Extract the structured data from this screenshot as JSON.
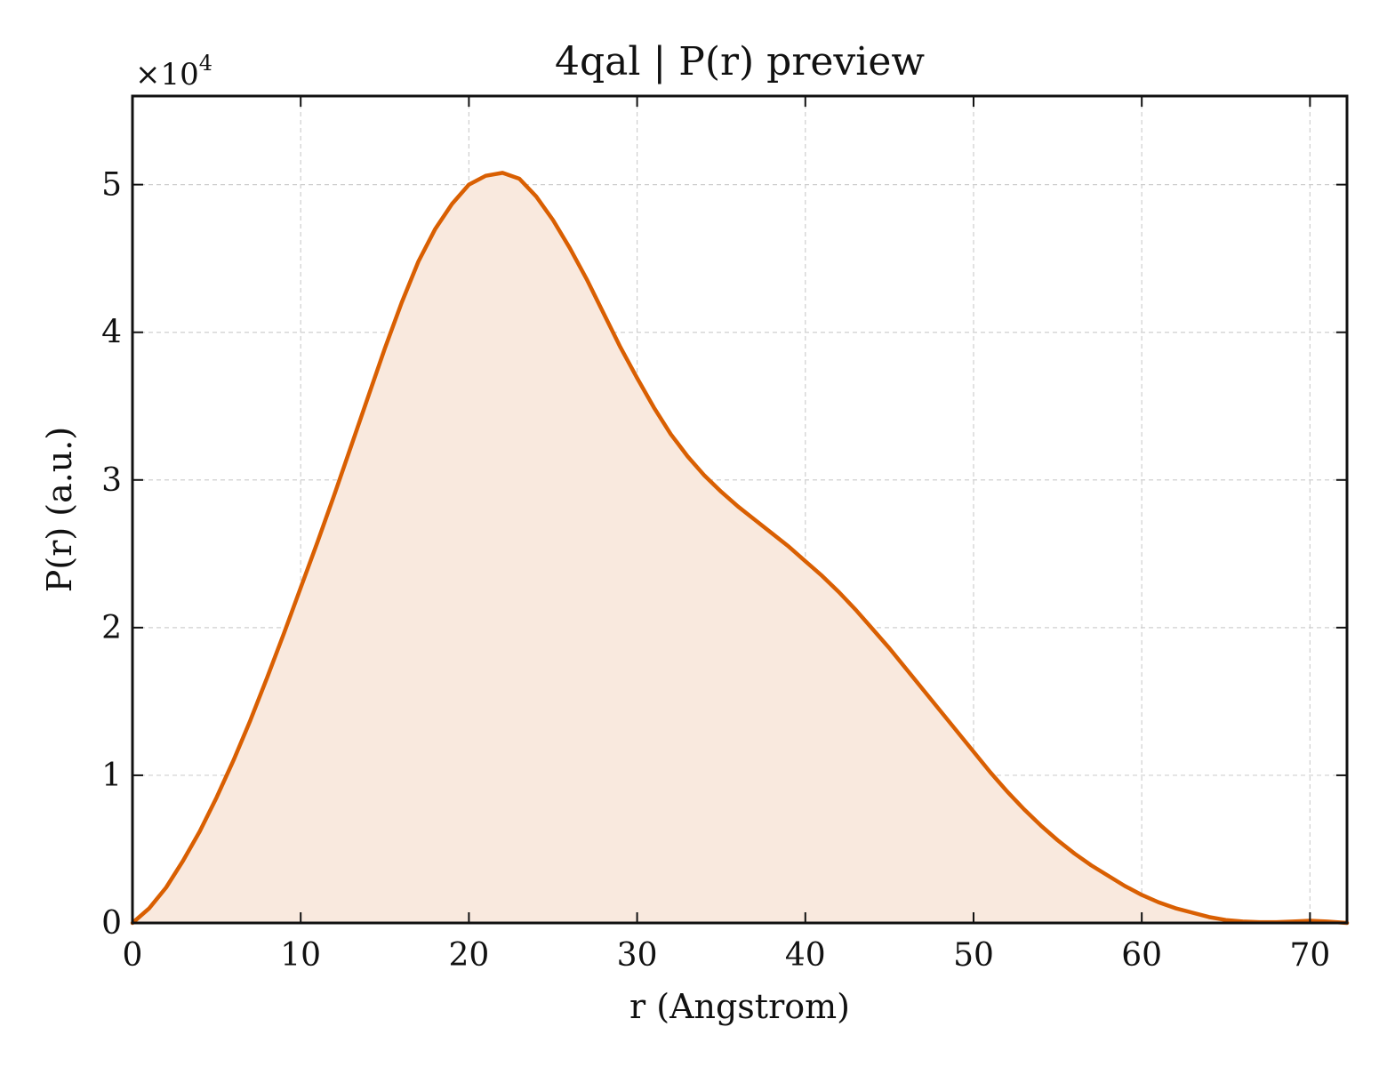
{
  "chart_data": {
    "type": "area",
    "title": "4qal | P(r) preview",
    "xlabel": "r (Angstrom)",
    "ylabel": "P(r) (a.u.)",
    "y_multiplier": {
      "base": "×10",
      "exponent": "4"
    },
    "xlim": [
      0,
      72.2
    ],
    "ylim": [
      0,
      56000
    ],
    "xticks": [
      0,
      10,
      20,
      30,
      40,
      50,
      60,
      70
    ],
    "yticks": [
      0,
      10000,
      20000,
      30000,
      40000,
      50000
    ],
    "ytick_labels": [
      "0",
      "1",
      "2",
      "3",
      "4",
      "5"
    ],
    "grid": true,
    "colors": {
      "line": "#d95f02",
      "fill": "#f9e9de"
    },
    "series": [
      {
        "x": [
          0,
          1,
          2,
          3,
          4,
          5,
          6,
          7,
          8,
          9,
          10,
          11,
          12,
          13,
          14,
          15,
          16,
          17,
          18,
          19,
          20,
          21,
          22,
          23,
          24,
          25,
          26,
          27,
          28,
          29,
          30,
          31,
          32,
          33,
          34,
          35,
          36,
          37,
          38,
          39,
          40,
          41,
          42,
          43,
          44,
          45,
          46,
          47,
          48,
          49,
          50,
          51,
          52,
          53,
          54,
          55,
          56,
          57,
          58,
          59,
          60,
          61,
          62,
          63,
          64,
          65,
          66,
          67,
          68,
          69,
          70,
          71,
          72.2
        ],
        "y": [
          0,
          1000,
          2400,
          4200,
          6200,
          8500,
          11000,
          13700,
          16600,
          19600,
          22700,
          25800,
          29000,
          32300,
          35600,
          38900,
          42000,
          44800,
          47000,
          48700,
          50000,
          50600,
          50800,
          50400,
          49200,
          47600,
          45700,
          43600,
          41300,
          39000,
          36900,
          34900,
          33100,
          31600,
          30300,
          29200,
          28200,
          27300,
          26400,
          25500,
          24500,
          23500,
          22400,
          21200,
          19900,
          18600,
          17200,
          15800,
          14400,
          13000,
          11600,
          10200,
          8900,
          7700,
          6600,
          5600,
          4700,
          3900,
          3200,
          2500,
          1900,
          1400,
          1000,
          700,
          400,
          200,
          100,
          50,
          50,
          100,
          150,
          100,
          0
        ]
      }
    ]
  }
}
